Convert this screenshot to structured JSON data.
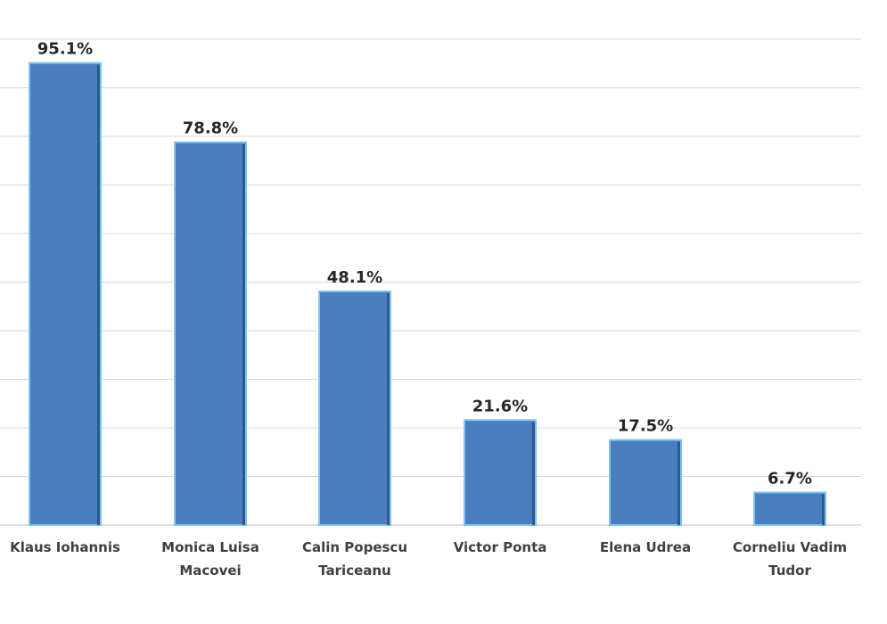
{
  "chart_data": {
    "type": "bar",
    "categories": [
      [
        "Klaus Iohannis"
      ],
      [
        "Monica Luisa",
        "Macovei"
      ],
      [
        "Calin Popescu",
        "Tariceanu"
      ],
      [
        "Victor Ponta"
      ],
      [
        "Elena Udrea"
      ],
      [
        "Corneliu Vadim",
        "Tudor"
      ]
    ],
    "values": [
      95.1,
      78.8,
      48.1,
      21.6,
      17.5,
      6.7
    ],
    "value_labels": [
      "95.1%",
      "78.8%",
      "48.1%",
      "21.6%",
      "17.5%",
      "6.7%"
    ],
    "ylim": [
      0,
      100
    ],
    "grid": true,
    "bar_color": "#4a7ebf",
    "bar_border_color": "#7fc4f2"
  }
}
